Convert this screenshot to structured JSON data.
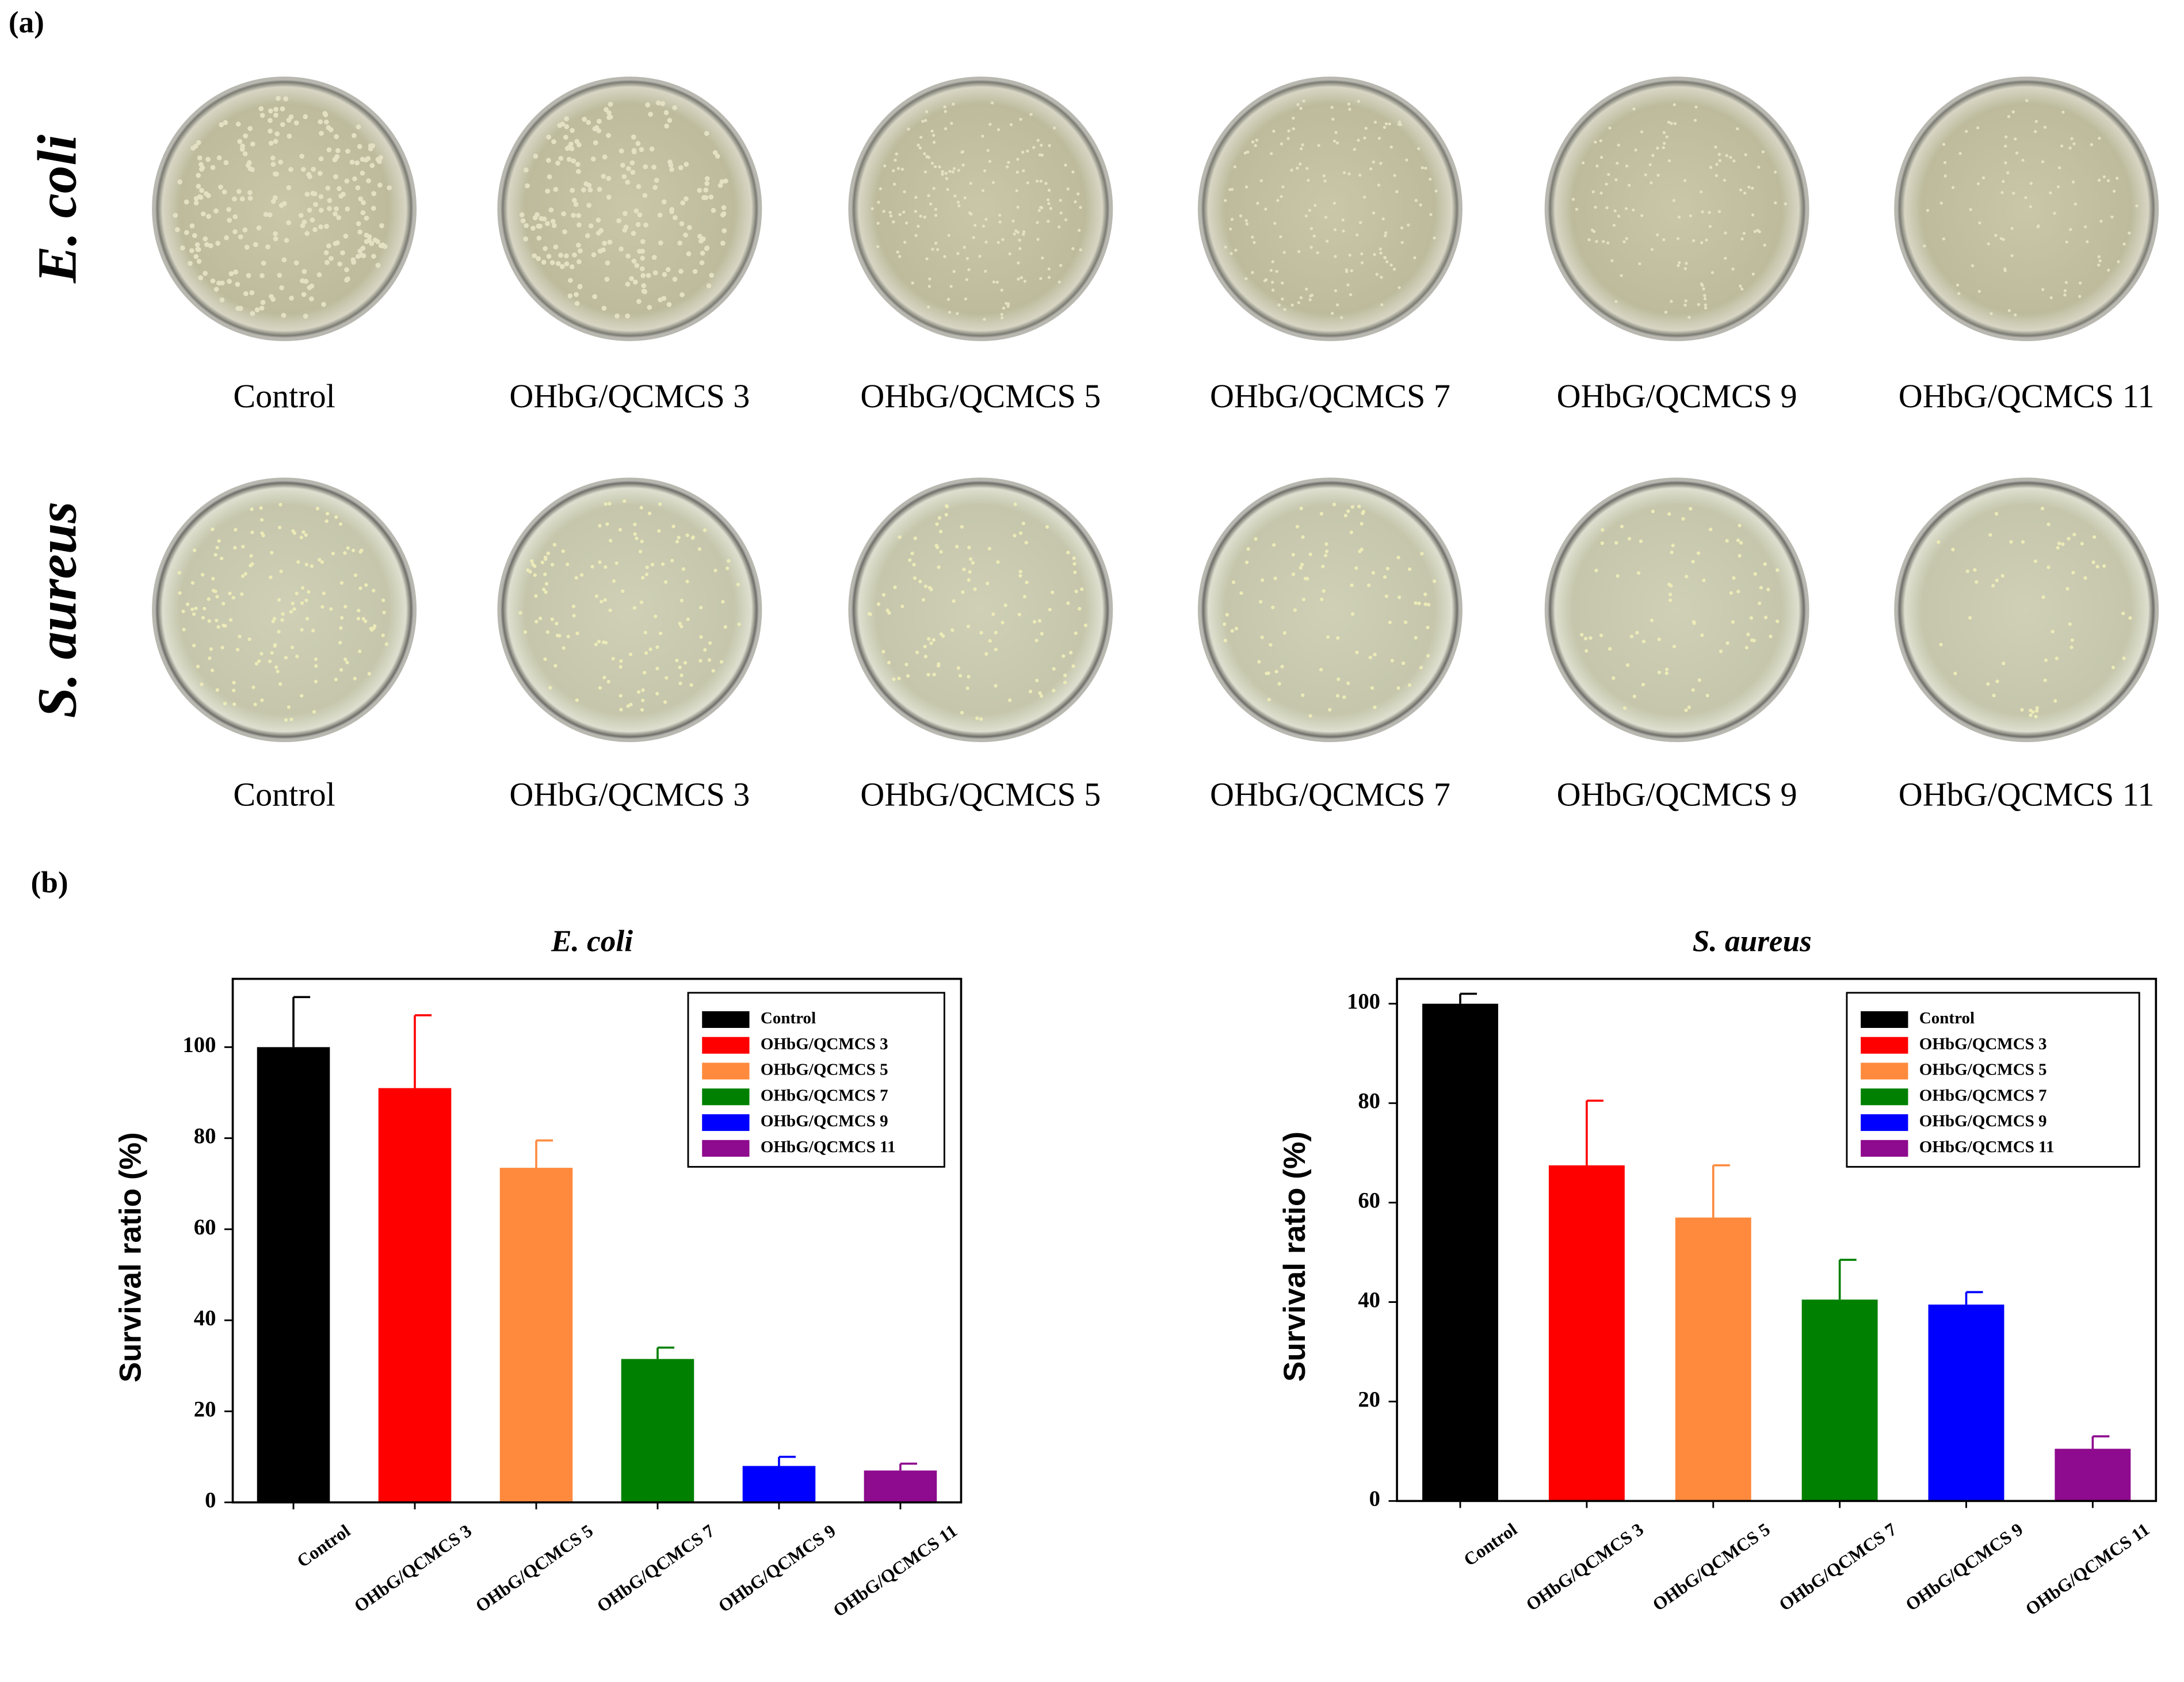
{
  "panel_a": {
    "label": "(a)",
    "rows": [
      {
        "organism": "E. coli",
        "samples": [
          "Control",
          "OHbG/QCMCS 3",
          "OHbG/QCMCS 5",
          "OHbG/QCMCS 7",
          "OHbG/QCMCS 9",
          "OHbG/QCMCS 11"
        ]
      },
      {
        "organism": "S. aureus",
        "samples": [
          "Control",
          "OHbG/QCMCS 3",
          "OHbG/QCMCS 5",
          "OHbG/QCMCS 7",
          "OHbG/QCMCS 9",
          "OHbG/QCMCS 11"
        ]
      }
    ]
  },
  "panel_b": {
    "label": "(b)"
  },
  "chart_data": [
    {
      "type": "bar",
      "title": "E. coli",
      "y_label": "Survival ratio (%)",
      "categories": [
        "Control",
        "OHbG/QCMCS 3",
        "OHbG/QCMCS 5",
        "OHbG/QCMCS 7",
        "OHbG/QCMCS 9",
        "OHbG/QCMCS 11"
      ],
      "values": [
        100,
        91,
        73.5,
        31.5,
        8,
        7
      ],
      "errors": [
        11,
        16,
        6,
        2.5,
        2,
        1.5
      ],
      "colors": [
        "#000000",
        "#ff0000",
        "#ff8a3d",
        "#008000",
        "#0000ff",
        "#8e0a8e"
      ],
      "ylim": [
        0,
        115
      ],
      "yticks": [
        0,
        20,
        40,
        60,
        80,
        100
      ],
      "legend": "upper right"
    },
    {
      "type": "bar",
      "title": "S. aureus",
      "y_label": "Survival ratio (%)",
      "categories": [
        "Control",
        "OHbG/QCMCS 3",
        "OHbG/QCMCS 5",
        "OHbG/QCMCS 7",
        "OHbG/QCMCS 9",
        "OHbG/QCMCS 11"
      ],
      "values": [
        100,
        67.5,
        57,
        40.5,
        39.5,
        10.5
      ],
      "errors": [
        2,
        13,
        10.5,
        8,
        2.5,
        2.5
      ],
      "colors": [
        "#000000",
        "#ff0000",
        "#ff8a3d",
        "#008000",
        "#0000ff",
        "#8e0a8e"
      ],
      "ylim": [
        0,
        105
      ],
      "yticks": [
        0,
        20,
        40,
        60,
        80,
        100
      ],
      "legend": "upper right"
    }
  ]
}
